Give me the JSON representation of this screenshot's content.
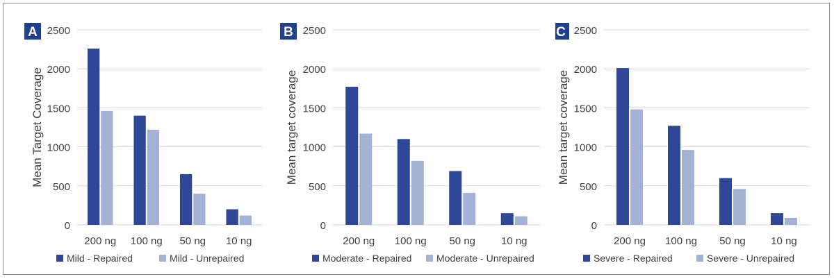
{
  "colors": {
    "repaired": "#2E4796",
    "unrepaired": "#A3B2D5",
    "gridline": "#D9D9D9",
    "axis_text": "#404040",
    "panel_badge": "#1F3F8F"
  },
  "chart_data": [
    {
      "type": "bar",
      "panel_label": "A",
      "categories": [
        "200 ng",
        "100 ng",
        "50 ng",
        "10 ng"
      ],
      "series": [
        {
          "name": "Mild - Repaired",
          "values": [
            2260,
            1400,
            650,
            200
          ]
        },
        {
          "name": "Mild - Unrepaired",
          "values": [
            1460,
            1220,
            400,
            120
          ]
        }
      ],
      "ylabel": "Mean Target Coverage",
      "ylim": [
        0,
        2500
      ],
      "yticks": [
        0,
        500,
        1000,
        1500,
        2000,
        2500
      ],
      "grid": true,
      "legend": "bottom"
    },
    {
      "type": "bar",
      "panel_label": "B",
      "categories": [
        "200 ng",
        "100 ng",
        "50 ng",
        "10 ng"
      ],
      "series": [
        {
          "name": "Moderate - Repaired",
          "values": [
            1770,
            1100,
            690,
            150
          ]
        },
        {
          "name": "Moderate - Unrepaired",
          "values": [
            1170,
            820,
            410,
            110
          ]
        }
      ],
      "ylabel": "Mean target coverage",
      "ylim": [
        0,
        2500
      ],
      "yticks": [
        0,
        500,
        1000,
        1500,
        2000,
        2500
      ],
      "grid": true,
      "legend": "bottom"
    },
    {
      "type": "bar",
      "panel_label": "C",
      "categories": [
        "200 ng",
        "100 ng",
        "50 ng",
        "10 ng"
      ],
      "series": [
        {
          "name": "Severe - Repaired",
          "values": [
            2010,
            1270,
            600,
            150
          ]
        },
        {
          "name": "Severe - Unrepaired",
          "values": [
            1480,
            960,
            460,
            90
          ]
        }
      ],
      "ylabel": "Mean target coverage",
      "ylim": [
        0,
        2500
      ],
      "yticks": [
        0,
        500,
        1000,
        1500,
        2000,
        2500
      ],
      "grid": true,
      "legend": "bottom"
    }
  ]
}
